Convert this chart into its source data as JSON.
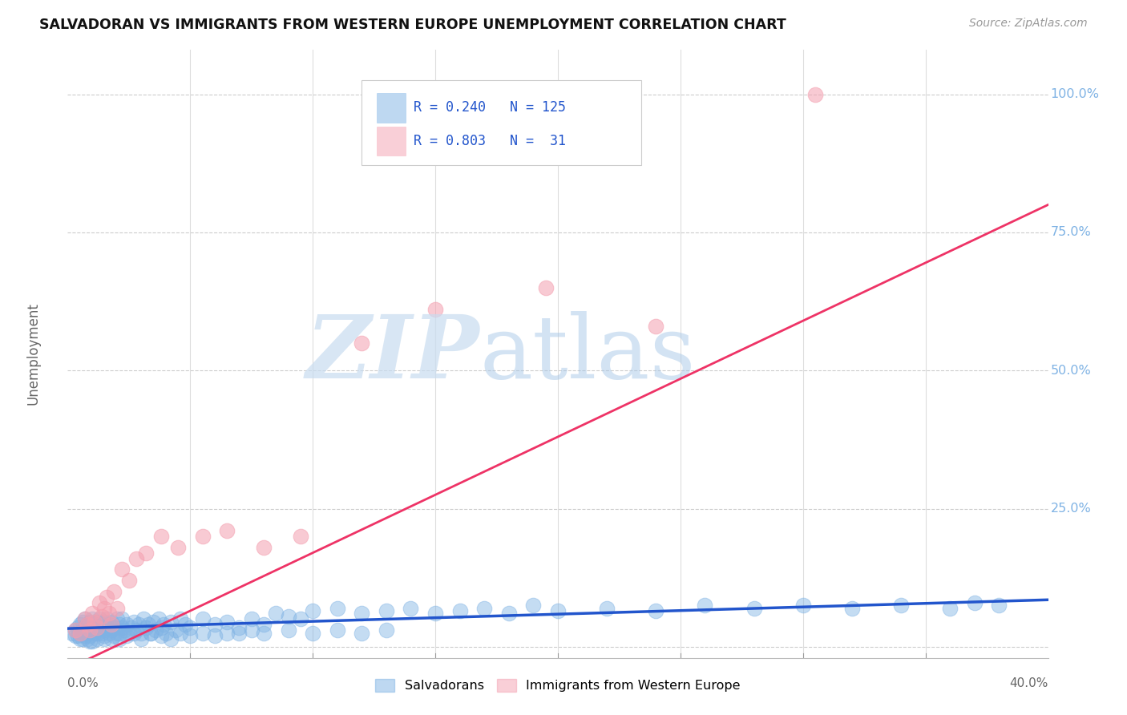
{
  "title": "SALVADORAN VS IMMIGRANTS FROM WESTERN EUROPE UNEMPLOYMENT CORRELATION CHART",
  "source": "Source: ZipAtlas.com",
  "ylabel": "Unemployment",
  "xlim": [
    0.0,
    0.4
  ],
  "ylim": [
    -0.02,
    1.08
  ],
  "ytick_vals": [
    0.0,
    0.25,
    0.5,
    0.75,
    1.0
  ],
  "ytick_labels": [
    "",
    "25.0%",
    "50.0%",
    "75.0%",
    "100.0%"
  ],
  "blue_color": "#7EB2E4",
  "pink_color": "#F4A0B0",
  "blue_line_color": "#2255CC",
  "pink_line_color": "#EE3366",
  "legend_text_color": "#2255CC",
  "watermark_zip_color": "#C8DCF0",
  "watermark_atlas_color": "#A8C8E8",
  "blue_scatter_x": [
    0.002,
    0.003,
    0.004,
    0.004,
    0.005,
    0.005,
    0.005,
    0.006,
    0.006,
    0.007,
    0.007,
    0.007,
    0.008,
    0.008,
    0.008,
    0.009,
    0.009,
    0.009,
    0.01,
    0.01,
    0.01,
    0.011,
    0.011,
    0.012,
    0.012,
    0.012,
    0.013,
    0.013,
    0.014,
    0.014,
    0.015,
    0.015,
    0.015,
    0.016,
    0.016,
    0.017,
    0.017,
    0.018,
    0.018,
    0.019,
    0.019,
    0.02,
    0.02,
    0.021,
    0.021,
    0.022,
    0.022,
    0.023,
    0.024,
    0.025,
    0.026,
    0.027,
    0.028,
    0.029,
    0.03,
    0.031,
    0.032,
    0.033,
    0.034,
    0.035,
    0.036,
    0.037,
    0.038,
    0.039,
    0.04,
    0.042,
    0.044,
    0.046,
    0.048,
    0.05,
    0.055,
    0.06,
    0.065,
    0.07,
    0.075,
    0.08,
    0.085,
    0.09,
    0.095,
    0.1,
    0.11,
    0.12,
    0.13,
    0.14,
    0.15,
    0.16,
    0.17,
    0.18,
    0.19,
    0.2,
    0.22,
    0.24,
    0.26,
    0.28,
    0.3,
    0.32,
    0.34,
    0.36,
    0.37,
    0.38,
    0.003,
    0.006,
    0.009,
    0.012,
    0.015,
    0.018,
    0.021,
    0.024,
    0.027,
    0.03,
    0.034,
    0.038,
    0.042,
    0.046,
    0.05,
    0.055,
    0.06,
    0.065,
    0.07,
    0.075,
    0.08,
    0.09,
    0.1,
    0.11,
    0.12,
    0.13
  ],
  "blue_scatter_y": [
    0.025,
    0.03,
    0.02,
    0.035,
    0.025,
    0.04,
    0.015,
    0.03,
    0.045,
    0.02,
    0.035,
    0.05,
    0.025,
    0.04,
    0.015,
    0.03,
    0.045,
    0.02,
    0.035,
    0.05,
    0.01,
    0.04,
    0.025,
    0.03,
    0.045,
    0.015,
    0.035,
    0.05,
    0.025,
    0.04,
    0.03,
    0.045,
    0.015,
    0.035,
    0.05,
    0.025,
    0.04,
    0.03,
    0.045,
    0.02,
    0.035,
    0.05,
    0.025,
    0.04,
    0.015,
    0.035,
    0.05,
    0.03,
    0.04,
    0.025,
    0.035,
    0.045,
    0.03,
    0.04,
    0.025,
    0.05,
    0.035,
    0.04,
    0.025,
    0.045,
    0.03,
    0.05,
    0.035,
    0.04,
    0.025,
    0.045,
    0.03,
    0.05,
    0.04,
    0.035,
    0.05,
    0.04,
    0.045,
    0.035,
    0.05,
    0.04,
    0.06,
    0.055,
    0.05,
    0.065,
    0.07,
    0.06,
    0.065,
    0.07,
    0.06,
    0.065,
    0.07,
    0.06,
    0.075,
    0.065,
    0.07,
    0.065,
    0.075,
    0.07,
    0.075,
    0.07,
    0.075,
    0.07,
    0.08,
    0.075,
    0.02,
    0.015,
    0.01,
    0.025,
    0.02,
    0.015,
    0.025,
    0.02,
    0.025,
    0.015,
    0.025,
    0.02,
    0.015,
    0.025,
    0.02,
    0.025,
    0.02,
    0.025,
    0.025,
    0.03,
    0.025,
    0.03,
    0.025,
    0.03,
    0.025,
    0.03
  ],
  "pink_scatter_x": [
    0.003,
    0.005,
    0.007,
    0.008,
    0.009,
    0.01,
    0.011,
    0.012,
    0.013,
    0.014,
    0.015,
    0.016,
    0.017,
    0.018,
    0.019,
    0.02,
    0.022,
    0.025,
    0.028,
    0.032,
    0.038,
    0.045,
    0.055,
    0.065,
    0.08,
    0.095,
    0.12,
    0.15,
    0.195,
    0.24,
    0.305
  ],
  "pink_scatter_y": [
    0.03,
    0.025,
    0.05,
    0.04,
    0.03,
    0.06,
    0.045,
    0.035,
    0.08,
    0.055,
    0.07,
    0.09,
    0.06,
    0.04,
    0.1,
    0.07,
    0.14,
    0.12,
    0.16,
    0.17,
    0.2,
    0.18,
    0.2,
    0.21,
    0.18,
    0.2,
    0.55,
    0.61,
    0.65,
    0.58,
    1.0
  ],
  "blue_line_slope": 0.12,
  "blue_line_intercept": 0.028,
  "pink_line_x0": 0.0,
  "pink_line_y0": -0.04,
  "pink_line_x1": 0.4,
  "pink_line_y1": 0.8
}
